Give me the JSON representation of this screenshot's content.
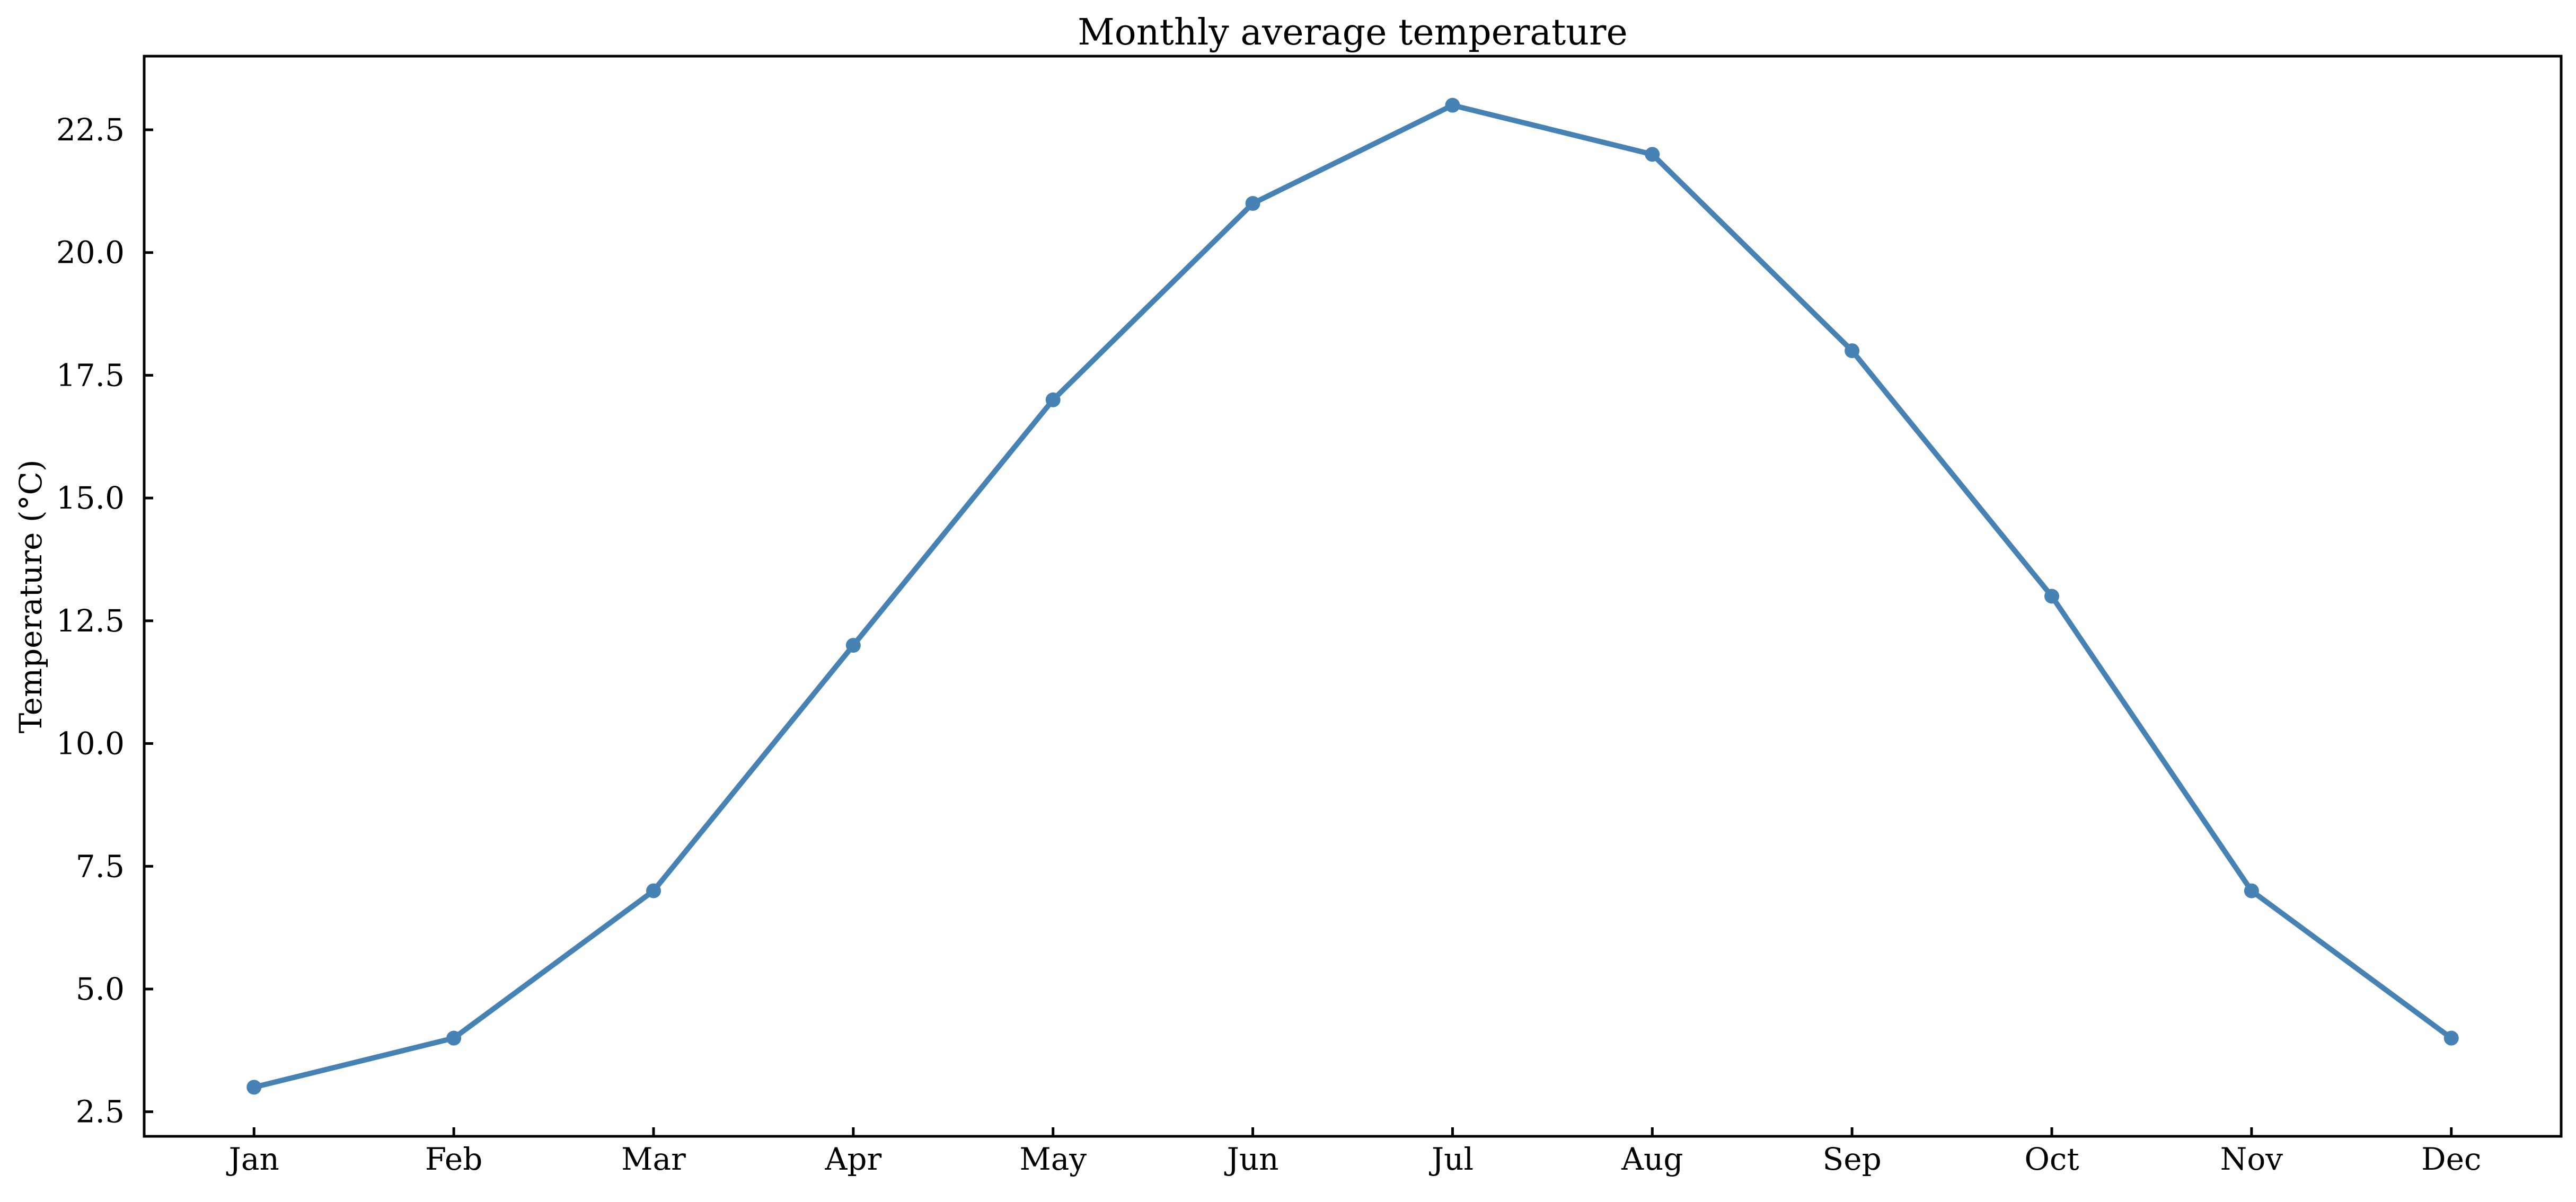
{
  "figure": {
    "background": "#ffffff",
    "text_color": "#000000",
    "axis_color": "#000000"
  },
  "chart_data": {
    "type": "line",
    "title": "Monthly average temperature",
    "xlabel": "",
    "ylabel": "Temperature (°C)",
    "categories": [
      "Jan",
      "Feb",
      "Mar",
      "Apr",
      "May",
      "Jun",
      "Jul",
      "Aug",
      "Sep",
      "Oct",
      "Nov",
      "Dec"
    ],
    "series": [
      {
        "name": "Monthly average temperature",
        "values": [
          3,
          4,
          7,
          12,
          17,
          21,
          23,
          22,
          18,
          13,
          7,
          4
        ],
        "line_color": "#4682b4",
        "marker": "circle"
      }
    ],
    "y_ticks": [
      2.5,
      5.0,
      7.5,
      10.0,
      12.5,
      15.0,
      17.5,
      20.0,
      22.5
    ],
    "y_tick_labels": [
      "2.5",
      "5.0",
      "7.5",
      "10.0",
      "12.5",
      "15.0",
      "17.5",
      "20.0",
      "22.5"
    ],
    "ylim": [
      2,
      24
    ],
    "grid": false,
    "legend": "none",
    "tick_direction": "in"
  }
}
